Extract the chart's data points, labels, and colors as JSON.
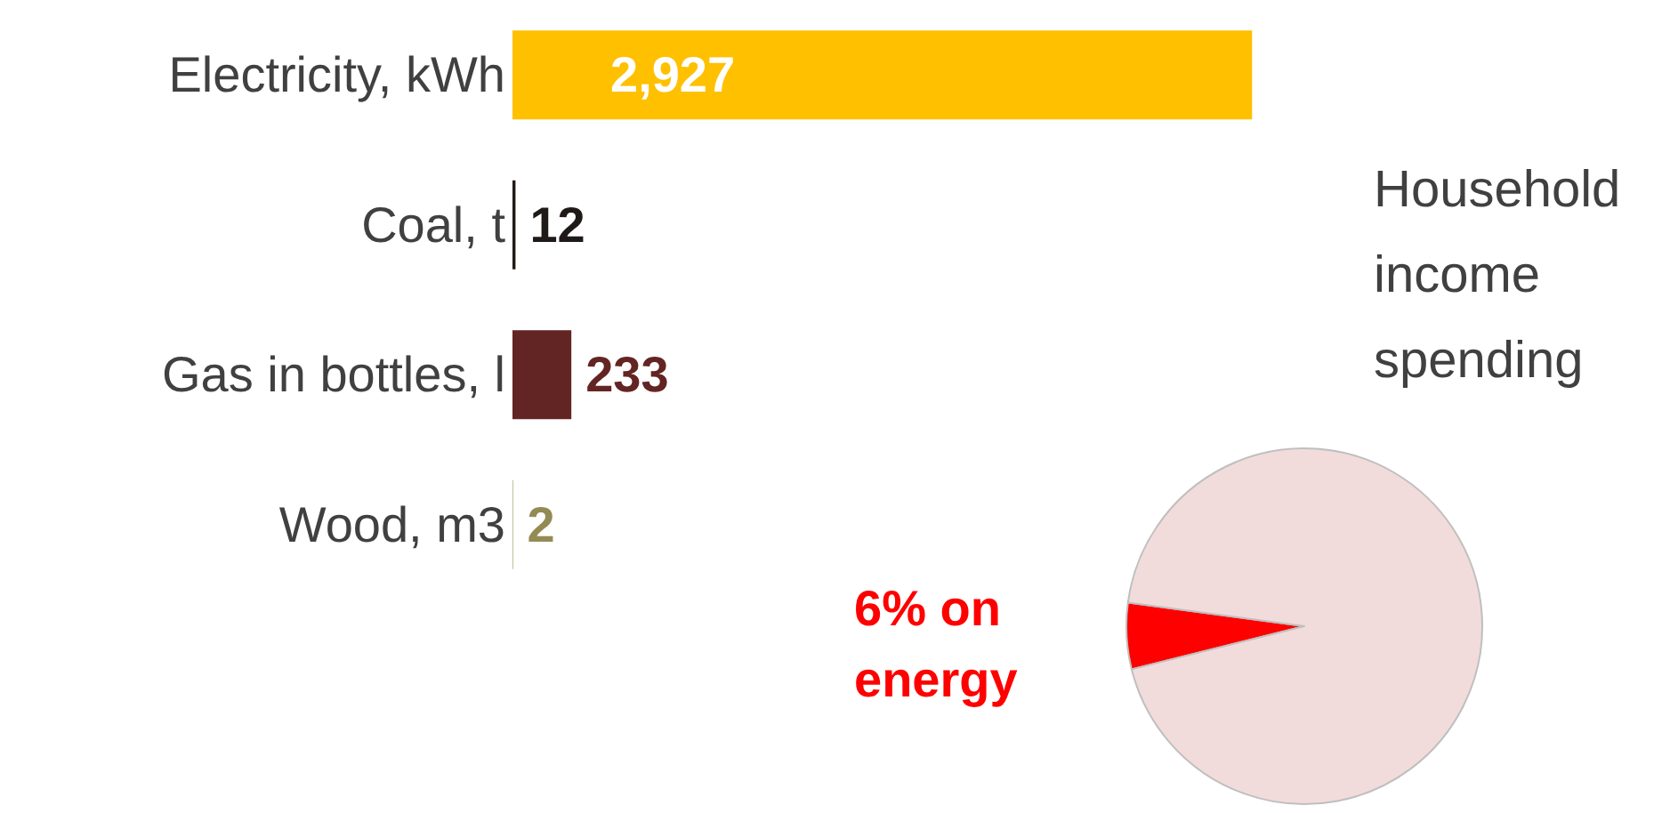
{
  "chart_data": [
    {
      "type": "bar",
      "orientation": "horizontal",
      "categories": [
        "Electricity, kWh",
        "Coal, t",
        "Gas in bottles, l",
        "Wood, m3"
      ],
      "values": [
        2927,
        12,
        233,
        2
      ],
      "value_labels": [
        "2,927",
        "12",
        "233",
        "2"
      ],
      "tick_labels": false,
      "colors": [
        "#ffc000",
        "#1f1a17",
        "#632523",
        "#948a54"
      ]
    },
    {
      "type": "pie",
      "title": "Household income spending",
      "categories": [
        null,
        null
      ],
      "values": [
        6,
        94
      ],
      "colors": [
        "#ff0000",
        "#f2dcdb"
      ],
      "annotations": [
        "6% on energy"
      ]
    }
  ]
}
